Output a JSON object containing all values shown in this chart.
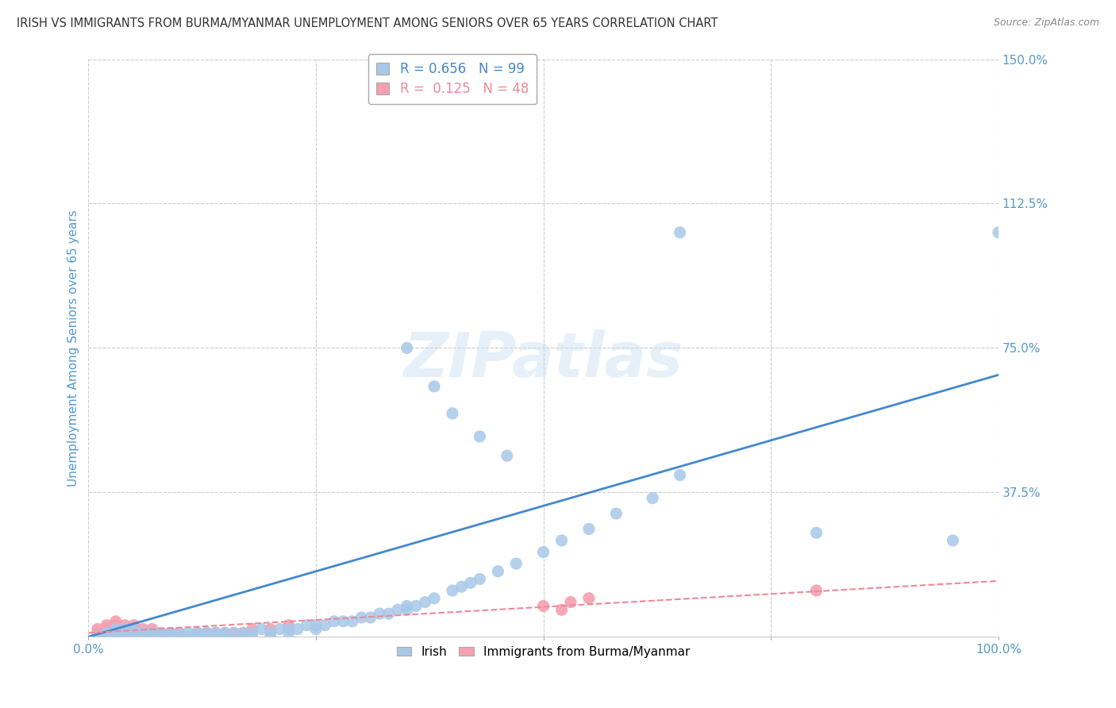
{
  "title": "IRISH VS IMMIGRANTS FROM BURMA/MYANMAR UNEMPLOYMENT AMONG SENIORS OVER 65 YEARS CORRELATION CHART",
  "source": "Source: ZipAtlas.com",
  "ylabel": "Unemployment Among Seniors over 65 years",
  "xlim": [
    0.0,
    1.0
  ],
  "ylim": [
    0.0,
    1.5
  ],
  "xticks": [
    0.0,
    0.25,
    0.5,
    0.75,
    1.0
  ],
  "xticklabels": [
    "0.0%",
    "",
    "",
    "",
    "100.0%"
  ],
  "yticks": [
    0.375,
    0.75,
    1.125,
    1.5
  ],
  "yticklabels": [
    "37.5%",
    "75.0%",
    "112.5%",
    "150.0%"
  ],
  "irish_R": 0.656,
  "irish_N": 99,
  "burma_R": 0.125,
  "burma_N": 48,
  "irish_color": "#a8c8e8",
  "burma_color": "#f4a0b0",
  "irish_line_color": "#4488cc",
  "burma_line_color": "#ee8899",
  "watermark": "ZIPatlas",
  "background_color": "#ffffff",
  "grid_color": "#cccccc",
  "axis_label_color": "#5599cc",
  "tick_label_color": "#5599cc",
  "irish_line_x": [
    0.0,
    1.0
  ],
  "irish_line_y": [
    0.0,
    0.68
  ],
  "burma_line_x": [
    0.0,
    1.0
  ],
  "burma_line_y": [
    0.01,
    0.145
  ],
  "irish_x": [
    0.01,
    0.02,
    0.02,
    0.02,
    0.03,
    0.03,
    0.03,
    0.03,
    0.03,
    0.03,
    0.04,
    0.04,
    0.04,
    0.04,
    0.04,
    0.04,
    0.05,
    0.05,
    0.05,
    0.05,
    0.05,
    0.06,
    0.06,
    0.06,
    0.06,
    0.06,
    0.07,
    0.07,
    0.07,
    0.07,
    0.08,
    0.08,
    0.08,
    0.09,
    0.09,
    0.1,
    0.1,
    0.1,
    0.1,
    0.11,
    0.11,
    0.12,
    0.12,
    0.13,
    0.13,
    0.14,
    0.14,
    0.15,
    0.15,
    0.16,
    0.17,
    0.17,
    0.18,
    0.18,
    0.19,
    0.2,
    0.2,
    0.21,
    0.22,
    0.22,
    0.23,
    0.24,
    0.25,
    0.25,
    0.26,
    0.27,
    0.28,
    0.29,
    0.3,
    0.31,
    0.32,
    0.33,
    0.34,
    0.35,
    0.35,
    0.36,
    0.37,
    0.38,
    0.4,
    0.41,
    0.42,
    0.43,
    0.45,
    0.47,
    0.5,
    0.52,
    0.55,
    0.58,
    0.62,
    0.65,
    0.35,
    0.38,
    0.4,
    0.43,
    0.46,
    0.65,
    0.8,
    0.95,
    1.0
  ],
  "irish_y": [
    0.0,
    0.0,
    0.01,
    0.0,
    0.0,
    0.01,
    0.0,
    0.01,
    0.0,
    0.02,
    0.0,
    0.01,
    0.0,
    0.01,
    0.02,
    0.0,
    0.0,
    0.01,
    0.0,
    0.01,
    0.02,
    0.0,
    0.01,
    0.0,
    0.01,
    0.0,
    0.0,
    0.01,
    0.0,
    0.01,
    0.0,
    0.01,
    0.0,
    0.0,
    0.01,
    0.0,
    0.01,
    0.0,
    0.01,
    0.0,
    0.01,
    0.0,
    0.01,
    0.0,
    0.01,
    0.0,
    0.01,
    0.0,
    0.01,
    0.01,
    0.0,
    0.01,
    0.0,
    0.01,
    0.02,
    0.0,
    0.01,
    0.02,
    0.01,
    0.02,
    0.02,
    0.03,
    0.02,
    0.03,
    0.03,
    0.04,
    0.04,
    0.04,
    0.05,
    0.05,
    0.06,
    0.06,
    0.07,
    0.07,
    0.08,
    0.08,
    0.09,
    0.1,
    0.12,
    0.13,
    0.14,
    0.15,
    0.17,
    0.19,
    0.22,
    0.25,
    0.28,
    0.32,
    0.36,
    0.42,
    0.75,
    0.65,
    0.58,
    0.52,
    0.47,
    1.05,
    0.27,
    0.25,
    1.05
  ],
  "burma_x": [
    0.01,
    0.01,
    0.01,
    0.02,
    0.02,
    0.02,
    0.02,
    0.03,
    0.03,
    0.03,
    0.03,
    0.03,
    0.04,
    0.04,
    0.04,
    0.04,
    0.05,
    0.05,
    0.05,
    0.05,
    0.06,
    0.06,
    0.06,
    0.07,
    0.07,
    0.07,
    0.08,
    0.08,
    0.09,
    0.09,
    0.1,
    0.1,
    0.11,
    0.12,
    0.12,
    0.13,
    0.14,
    0.15,
    0.16,
    0.17,
    0.18,
    0.2,
    0.22,
    0.52,
    0.8,
    0.5,
    0.53,
    0.55
  ],
  "burma_y": [
    0.0,
    0.01,
    0.02,
    0.0,
    0.01,
    0.02,
    0.03,
    0.0,
    0.01,
    0.02,
    0.03,
    0.04,
    0.0,
    0.01,
    0.02,
    0.03,
    0.0,
    0.01,
    0.02,
    0.03,
    0.0,
    0.01,
    0.02,
    0.0,
    0.01,
    0.02,
    0.0,
    0.01,
    0.0,
    0.01,
    0.0,
    0.01,
    0.0,
    0.0,
    0.01,
    0.01,
    0.01,
    0.01,
    0.01,
    0.01,
    0.02,
    0.02,
    0.03,
    0.07,
    0.12,
    0.08,
    0.09,
    0.1
  ]
}
